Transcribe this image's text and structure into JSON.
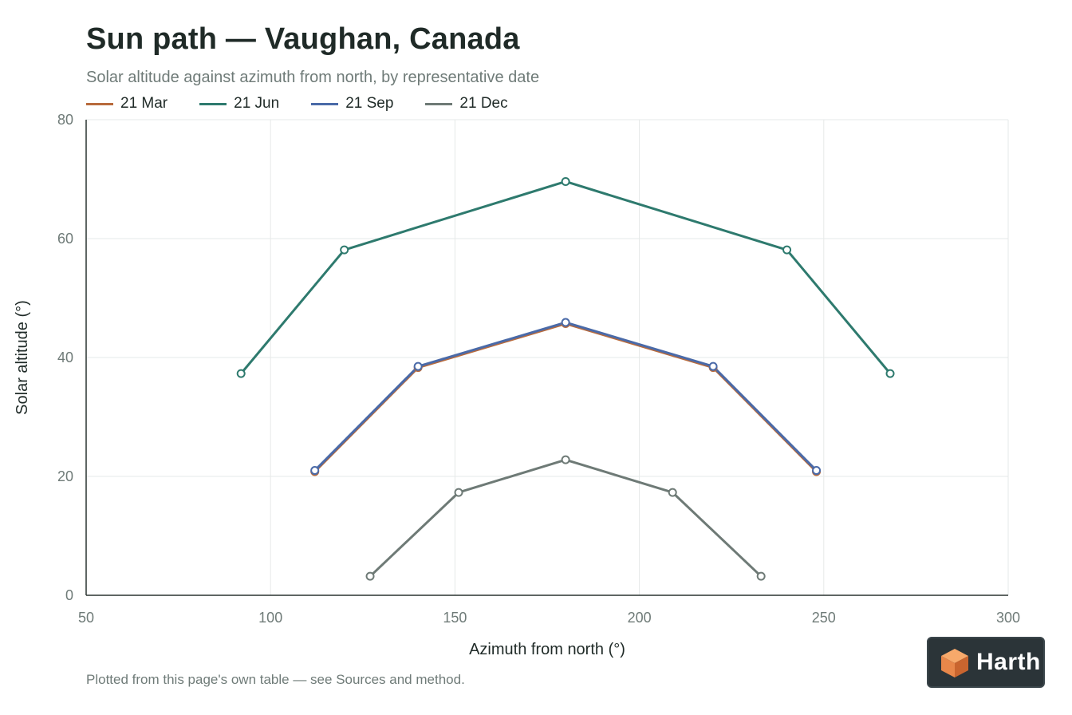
{
  "page": {
    "title": "Sun path — Vaughan, Canada",
    "subtitle": "Solar altitude against azimuth from north, by representative date",
    "footnote": "Plotted from this page's own table — see Sources and method."
  },
  "brand": {
    "name": "Harth",
    "logo_icon": "isometric-cube-icon",
    "badge_color": "#2b3438",
    "logo_colors": [
      "#f7a96b",
      "#e8874a",
      "#c9652f"
    ]
  },
  "chart_data": {
    "type": "line",
    "xlabel": "Azimuth from north (°)",
    "ylabel": "Solar altitude (°)",
    "xlim": [
      50,
      300
    ],
    "ylim": [
      0,
      80
    ],
    "xticks": [
      50,
      100,
      150,
      200,
      250,
      300
    ],
    "yticks": [
      0,
      20,
      40,
      60,
      80
    ],
    "grid": true,
    "legend_position": "top-left",
    "series": [
      {
        "name": "21 Mar",
        "color": "#b86a3c",
        "points": [
          [
            112,
            20.8
          ],
          [
            140,
            38.3
          ],
          [
            180,
            45.7
          ],
          [
            220,
            38.3
          ],
          [
            248,
            20.8
          ]
        ]
      },
      {
        "name": "21 Jun",
        "color": "#2e7a6e",
        "points": [
          [
            92,
            37.3
          ],
          [
            120,
            58.1
          ],
          [
            180,
            69.6
          ],
          [
            240,
            58.1
          ],
          [
            268,
            37.3
          ]
        ]
      },
      {
        "name": "21 Sep",
        "color": "#4a6aa8",
        "points": [
          [
            112,
            21.0
          ],
          [
            140,
            38.5
          ],
          [
            180,
            45.9
          ],
          [
            220,
            38.5
          ],
          [
            248,
            21.0
          ]
        ]
      },
      {
        "name": "21 Dec",
        "color": "#6e7a76",
        "points": [
          [
            127,
            3.2
          ],
          [
            151,
            17.3
          ],
          [
            180,
            22.8
          ],
          [
            209,
            17.3
          ],
          [
            233,
            3.2
          ]
        ]
      }
    ]
  }
}
